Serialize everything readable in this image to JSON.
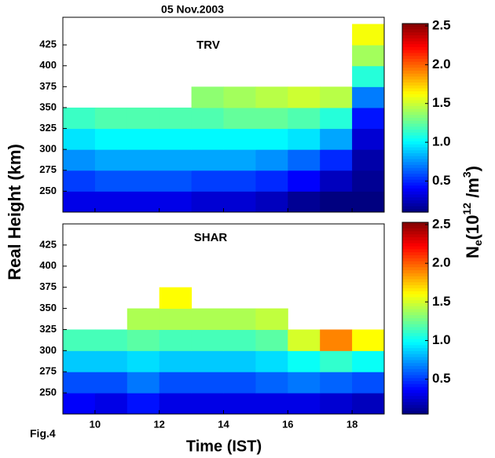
{
  "figure_label": "Fig.4",
  "colorbar_label": {
    "parts": [
      "N",
      "e",
      "(10",
      "12",
      " /m",
      "3",
      ")"
    ]
  },
  "chart_data": [
    {
      "type": "heatmap",
      "title": "05 Nov.2003",
      "annotation": "TRV",
      "ylabel": "Real Height  (km)",
      "x": [
        9.5,
        10.5,
        11.5,
        12.5,
        13.5,
        14.5,
        15.5,
        16.5,
        17.5,
        18.5
      ],
      "y": [
        237.5,
        262.5,
        287.5,
        312.5,
        337.5,
        362.5,
        387.5,
        412.5,
        437.5
      ],
      "z": [
        [
          0.35,
          0.35,
          0.35,
          0.35,
          0.3,
          0.3,
          0.25,
          0.15,
          0.1,
          0.1
        ],
        [
          0.55,
          0.6,
          0.6,
          0.6,
          0.55,
          0.55,
          0.5,
          0.4,
          0.25,
          0.15
        ],
        [
          0.75,
          0.8,
          0.8,
          0.8,
          0.8,
          0.8,
          0.75,
          0.65,
          0.5,
          0.2
        ],
        [
          0.95,
          1.0,
          1.0,
          1.0,
          1.0,
          1.0,
          1.0,
          0.95,
          0.8,
          0.3
        ],
        [
          1.15,
          1.2,
          1.2,
          1.2,
          1.2,
          1.25,
          1.25,
          1.2,
          1.1,
          0.45
        ],
        [
          null,
          null,
          null,
          null,
          1.35,
          1.4,
          1.45,
          1.5,
          1.45,
          0.7
        ],
        [
          null,
          null,
          null,
          null,
          null,
          null,
          null,
          null,
          null,
          1.1
        ],
        [
          null,
          null,
          null,
          null,
          null,
          null,
          null,
          null,
          null,
          1.4
        ],
        [
          null,
          null,
          null,
          null,
          null,
          null,
          null,
          null,
          null,
          1.6
        ]
      ],
      "xlim": [
        9,
        19
      ],
      "ylim": [
        225,
        458
      ],
      "yticks": [
        250,
        275,
        300,
        325,
        350,
        375,
        400,
        425
      ],
      "clim": [
        0.1,
        2.53
      ],
      "cticks": [
        0.5,
        {
          "value": 1,
          "label": "1.0"
        },
        1.5,
        {
          "value": 2,
          "label": "2.0"
        },
        2.5
      ]
    },
    {
      "type": "heatmap",
      "annotation": "SHAR",
      "xlabel": "Time (IST)",
      "x": [
        9.5,
        10.5,
        11.5,
        12.5,
        13.5,
        14.5,
        15.5,
        16.5,
        17.5,
        18.5
      ],
      "y": [
        237.5,
        262.5,
        287.5,
        312.5,
        337.5,
        362.5,
        387.5,
        412.5,
        437.5
      ],
      "z": [
        [
          0.35,
          0.3,
          0.4,
          0.3,
          0.3,
          0.3,
          0.3,
          0.3,
          0.25,
          0.2
        ],
        [
          0.55,
          0.55,
          0.65,
          0.55,
          0.55,
          0.55,
          0.6,
          0.65,
          0.6,
          0.55
        ],
        [
          0.85,
          0.85,
          0.9,
          0.85,
          0.85,
          0.85,
          0.9,
          1.0,
          1.1,
          1.0
        ],
        [
          1.15,
          1.15,
          1.2,
          1.15,
          1.15,
          1.15,
          1.2,
          1.5,
          1.9,
          1.6
        ],
        [
          null,
          null,
          1.4,
          1.4,
          1.4,
          1.4,
          1.45,
          null,
          null,
          null
        ],
        [
          null,
          null,
          null,
          1.6,
          null,
          null,
          null,
          null,
          null,
          null
        ],
        [
          null,
          null,
          null,
          null,
          null,
          null,
          null,
          null,
          null,
          null
        ],
        [
          null,
          null,
          null,
          null,
          null,
          null,
          null,
          null,
          null,
          null
        ],
        [
          null,
          null,
          null,
          null,
          null,
          null,
          null,
          null,
          null,
          null
        ]
      ],
      "xlim": [
        9,
        19
      ],
      "ylim": [
        225,
        450
      ],
      "xticks": [
        10,
        12,
        14,
        16,
        18
      ],
      "yticks": [
        250,
        275,
        300,
        325,
        350,
        375,
        400,
        425
      ],
      "clim": [
        0.05,
        2.53
      ],
      "cticks": [
        0.5,
        {
          "value": 1,
          "label": "1.0"
        },
        1.5,
        {
          "value": 2,
          "label": "2.0"
        },
        2.5
      ]
    }
  ]
}
